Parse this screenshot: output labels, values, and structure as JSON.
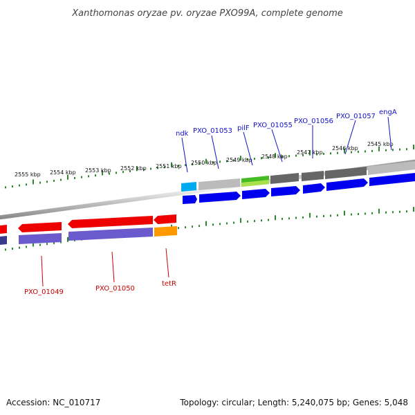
{
  "title": "Xanthomonas oryzae pv. oryzae PXO99A, complete genome",
  "footer": {
    "accession": "Accession: NC_010717",
    "summary": "Topology: circular; Length: 5,240,075 bp; Genes: 5,048"
  },
  "kbp_ticks": [
    "2555 kbp",
    "2554 kbp",
    "2553 kbp",
    "2552 kbp",
    "2551 kbp",
    "2550 kbp",
    "2549 kbp",
    "2548 kbp",
    "2547 kbp",
    "2546 kbp",
    "2545 kbp"
  ],
  "forward_genes": [
    "ndk",
    "PXO_01053",
    "pilF",
    "PXO_01055",
    "PXO_01056",
    "PXO_01057",
    "engA"
  ],
  "reverse_genes": [
    "PXO_01049",
    "PXO_01050",
    "tetR"
  ],
  "colors": {
    "forward_cds": "#0000ee",
    "reverse_cds": "#ee0000",
    "tick": "#2a8a2a",
    "backbone": "#7a7a7a",
    "forward_label": "#1010c8",
    "reverse_label": "#c80000",
    "cog_light_blue": "#00aaee",
    "cog_green": "#44bb22",
    "cog_purple": "#6a5acd",
    "cog_orange": "#ff9900",
    "cog_light_gray": "#bbbbbb",
    "cog_dark_gray": "#666666"
  }
}
